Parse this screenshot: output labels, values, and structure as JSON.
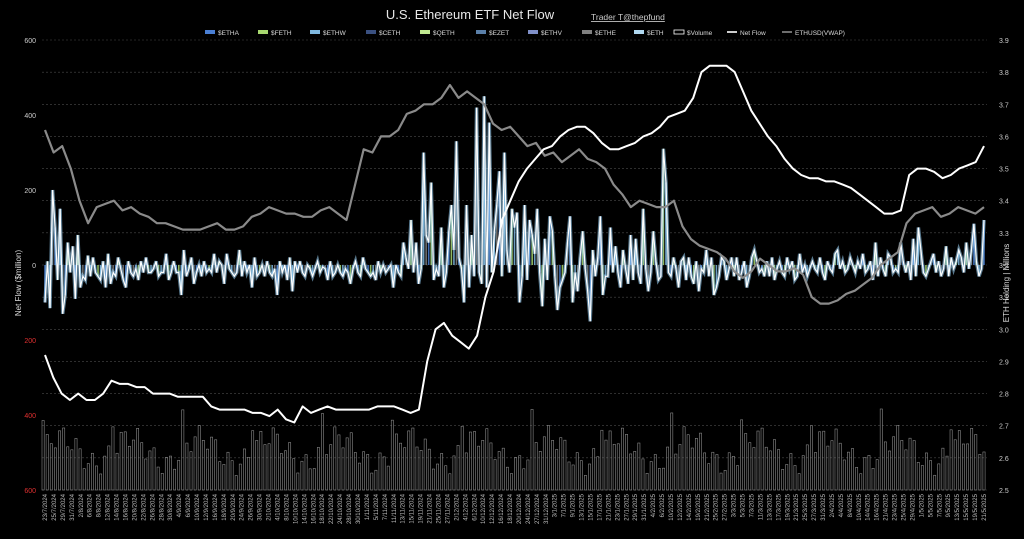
{
  "chart_data": {
    "type": "line",
    "title": "U.S. Ethereum ETF Net Flow",
    "subtitle": "Trader T@thepfund",
    "ylabel": "Net Flow ($million)",
    "y2label": "ETH Holding | Millions",
    "ylim": [
      -600,
      600
    ],
    "y2lim": [
      2.5,
      3.9
    ],
    "y_ticks": [
      600,
      400,
      200,
      0,
      -200,
      -400,
      -600
    ],
    "y_ticks_text": [
      "600",
      "400",
      "200",
      "0",
      "200",
      "400",
      "600"
    ],
    "y2_ticks": [
      3.9,
      3.8,
      3.7,
      3.6,
      3.5,
      3.4,
      3.3,
      3.2,
      3.1,
      3.0,
      2.9,
      2.8,
      2.7,
      2.6,
      2.5
    ],
    "legend_position": "top",
    "legend": [
      {
        "label": "$ETHA",
        "color": "#4a7fd4",
        "kind": "bar"
      },
      {
        "label": "$FETH",
        "color": "#a8d870",
        "kind": "bar"
      },
      {
        "label": "$ETHW",
        "color": "#7fb8e0",
        "kind": "bar"
      },
      {
        "label": "$CETH",
        "color": "#3a5080",
        "kind": "bar"
      },
      {
        "label": "$QETH",
        "color": "#c0e890",
        "kind": "bar"
      },
      {
        "label": "$EZET",
        "color": "#5a7fa8",
        "kind": "bar"
      },
      {
        "label": "$ETHV",
        "color": "#8090c8",
        "kind": "bar"
      },
      {
        "label": "$ETHE",
        "color": "#808080",
        "kind": "bar"
      },
      {
        "label": "$ETH",
        "color": "#b0d8f0",
        "kind": "bar"
      },
      {
        "label": "$Volume",
        "color": "#ffffff",
        "kind": "outline"
      },
      {
        "label": "Net Flow",
        "color": "#ffffff",
        "kind": "line"
      },
      {
        "label": "ETHUSD(VWAP)",
        "color": "#8a8a8a",
        "kind": "line"
      }
    ],
    "x_tick_labels": [
      "23/7/2024",
      "25/7/2024",
      "29/7/2024",
      "31/7/2024",
      "2/8/2024",
      "6/8/2024",
      "8/8/2024",
      "12/8/2024",
      "14/8/2024",
      "16/8/2024",
      "20/8/2024",
      "22/8/2024",
      "26/8/2024",
      "28/8/2024",
      "30/8/2024",
      "4/9/2024",
      "6/9/2024",
      "10/9/2024",
      "12/9/2024",
      "16/9/2024",
      "18/9/2024",
      "20/9/2024",
      "24/9/2024",
      "26/9/2024",
      "30/9/2024",
      "2/10/2024",
      "4/10/2024",
      "8/10/2024",
      "10/10/2024",
      "14/10/2024",
      "16/10/2024",
      "18/10/2024",
      "22/10/2024",
      "24/10/2024",
      "28/10/2024",
      "30/10/2024",
      "1/11/2024",
      "5/11/2024",
      "7/11/2024",
      "11/11/2024",
      "13/11/2024",
      "15/11/2024",
      "19/11/2024",
      "21/11/2024",
      "25/11/2024",
      "27/11/2024",
      "2/12/2024",
      "4/12/2024",
      "6/12/2024",
      "10/12/2024",
      "12/12/2024",
      "16/12/2024",
      "18/12/2024",
      "20/12/2024",
      "24/12/2024",
      "27/12/2024",
      "31/12/2024",
      "3/1/2025",
      "7/1/2025",
      "9/1/2025",
      "13/1/2025",
      "15/1/2025",
      "17/1/2025",
      "21/1/2025",
      "23/1/2025",
      "27/1/2025",
      "29/1/2025",
      "31/1/2025",
      "4/2/2025",
      "6/2/2025",
      "10/2/2025",
      "12/2/2025",
      "14/2/2025",
      "19/2/2025",
      "21/2/2025",
      "25/2/2025",
      "27/2/2025",
      "3/3/2025",
      "5/3/2025",
      "7/3/2025",
      "11/3/2025",
      "13/3/2025",
      "17/3/2025",
      "19/3/2025",
      "21/3/2025",
      "25/3/2025",
      "27/3/2025",
      "31/3/2025",
      "2/4/2025",
      "4/4/2025",
      "8/4/2025",
      "10/4/2025",
      "14/4/2025",
      "16/4/2025",
      "21/4/2025",
      "23/4/2025",
      "25/4/2025",
      "29/4/2025",
      "1/5/2025",
      "5/5/2025",
      "7/5/2025",
      "9/5/2025",
      "13/5/2025",
      "15/5/2025",
      "19/5/2025",
      "21/5/2025"
    ],
    "net_flow": [
      -100,
      10,
      -115,
      200,
      100,
      -40,
      150,
      -130,
      -80,
      60,
      -20,
      50,
      -90,
      80,
      -60,
      -30,
      -40,
      25,
      -30,
      20,
      -20,
      -30,
      -40,
      10,
      -60,
      30,
      -50,
      -20,
      -30,
      20,
      -10,
      -40,
      -60,
      10,
      -20,
      -30,
      -10,
      -40,
      10,
      -20,
      20,
      -20,
      -20,
      -10,
      10,
      -30,
      -20,
      -20,
      30,
      -40,
      -20,
      10,
      -20,
      -20,
      -80,
      40,
      -30,
      -10,
      20,
      -50,
      -20,
      0,
      -30,
      10,
      -20,
      -10,
      -20,
      30,
      -20,
      10,
      0,
      -50,
      30,
      -10,
      -20,
      -30,
      -20,
      40,
      -30,
      10,
      -20,
      0,
      -60,
      20,
      -30,
      -20,
      0,
      -30,
      10,
      -20,
      -30,
      -10,
      -80,
      10,
      -20,
      0,
      -40,
      20,
      -70,
      10,
      -20,
      10,
      -20,
      -30,
      0,
      -10,
      -30,
      -10,
      10,
      -20,
      -5,
      -10,
      -40,
      10,
      -30,
      -20,
      0,
      -20,
      -30,
      -10,
      -20,
      -50,
      -10,
      10,
      -20,
      -30,
      20,
      -10,
      -20,
      -30,
      -20,
      -40,
      10,
      -20,
      0,
      -20,
      -10,
      0,
      -60,
      0,
      -20,
      -30,
      60,
      20,
      -10,
      120,
      -20,
      60,
      -50,
      -10,
      300,
      80,
      60,
      220,
      -40,
      -10,
      -30,
      100,
      -60,
      -20,
      90,
      160,
      40,
      330,
      20,
      -10,
      -100,
      160,
      -60,
      80,
      -30,
      420,
      -20,
      -50,
      450,
      -60,
      380,
      -20,
      90,
      160,
      250,
      -30,
      300,
      40,
      -20,
      150,
      100,
      140,
      -100,
      -30,
      160,
      -40,
      120,
      80,
      30,
      150,
      -20,
      -110,
      70,
      -40,
      130,
      90,
      -30,
      -120,
      -60,
      -40,
      -20,
      60,
      130,
      -100,
      -20,
      -70,
      20,
      90,
      -10,
      -70,
      -150,
      40,
      -30,
      20,
      130,
      -80,
      -30,
      -30,
      100,
      -20,
      50,
      -20,
      -60,
      40,
      -10,
      -50,
      80,
      -40,
      70,
      -20,
      -50,
      150,
      -10,
      -70,
      -20,
      90,
      10,
      -40,
      -30,
      310,
      220,
      -20,
      -30,
      20,
      -10,
      -60,
      10,
      20,
      -40,
      20,
      -30,
      -50,
      10,
      -70,
      -10,
      -20,
      40,
      -30,
      20,
      -80,
      -60,
      -30,
      20,
      10,
      -40,
      -10,
      20,
      -30,
      20,
      -40,
      -20,
      10,
      -60,
      -30,
      20,
      40,
      10,
      -20,
      -10,
      -30,
      10,
      -30,
      20,
      -40,
      -10,
      10,
      -20,
      -30,
      20,
      -10,
      10,
      -40,
      -30,
      30,
      -20,
      0,
      -30,
      -10,
      10,
      -10,
      -20,
      20,
      -20,
      -40,
      10,
      -10,
      -20,
      30,
      40,
      -10,
      10,
      -20,
      -10,
      20,
      0,
      -20,
      10,
      -10,
      30,
      -20,
      -10,
      10,
      -40,
      60,
      -30,
      20,
      -10,
      -30,
      30,
      20,
      -20,
      -10,
      -20,
      60,
      10,
      -20,
      10,
      -40,
      70,
      -30,
      100,
      40,
      -20,
      -30,
      -10,
      10,
      30,
      -20,
      10,
      -30,
      -10,
      50,
      -30,
      20,
      -10,
      10,
      40,
      20,
      -20,
      60,
      -10,
      40,
      110,
      10,
      -30,
      -10,
      120
    ],
    "eth_holding": [
      2.92,
      2.85,
      2.8,
      2.78,
      2.8,
      2.78,
      2.78,
      2.8,
      2.84,
      2.83,
      2.83,
      2.82,
      2.82,
      2.8,
      2.8,
      2.8,
      2.79,
      2.79,
      2.79,
      2.79,
      2.76,
      2.75,
      2.75,
      2.75,
      2.75,
      2.74,
      2.74,
      2.73,
      2.75,
      2.72,
      2.71,
      2.76,
      2.74,
      2.75,
      2.76,
      2.75,
      2.75,
      2.75,
      2.75,
      2.75,
      2.76,
      2.76,
      2.76,
      2.75,
      2.74,
      2.75,
      2.9,
      3.0,
      3.02,
      2.98,
      2.96,
      2.94,
      2.98,
      3.1,
      3.18,
      3.34,
      3.4,
      3.46,
      3.5,
      3.53,
      3.56,
      3.57,
      3.6,
      3.62,
      3.63,
      3.63,
      3.61,
      3.58,
      3.56,
      3.56,
      3.57,
      3.58,
      3.6,
      3.61,
      3.63,
      3.66,
      3.67,
      3.68,
      3.72,
      3.8,
      3.82,
      3.82,
      3.82,
      3.8,
      3.74,
      3.68,
      3.64,
      3.6,
      3.57,
      3.53,
      3.5,
      3.48,
      3.47,
      3.47,
      3.46,
      3.46,
      3.45,
      3.44,
      3.42,
      3.4,
      3.38,
      3.36,
      3.36,
      3.37,
      3.48,
      3.5,
      3.5,
      3.49,
      3.47,
      3.48,
      3.5,
      3.51,
      3.52,
      3.57
    ],
    "ethusd_vwap": [
      3.62,
      3.55,
      3.57,
      3.5,
      3.4,
      3.33,
      3.38,
      3.39,
      3.4,
      3.37,
      3.38,
      3.36,
      3.35,
      3.33,
      3.33,
      3.32,
      3.31,
      3.31,
      3.31,
      3.32,
      3.33,
      3.31,
      3.31,
      3.32,
      3.35,
      3.36,
      3.38,
      3.37,
      3.36,
      3.36,
      3.35,
      3.35,
      3.37,
      3.38,
      3.36,
      3.34,
      3.45,
      3.56,
      3.55,
      3.6,
      3.6,
      3.62,
      3.67,
      3.68,
      3.7,
      3.7,
      3.72,
      3.76,
      3.72,
      3.74,
      3.72,
      3.7,
      3.64,
      3.62,
      3.63,
      3.6,
      3.57,
      3.58,
      3.54,
      3.55,
      3.52,
      3.54,
      3.56,
      3.53,
      3.52,
      3.5,
      3.45,
      3.42,
      3.38,
      3.4,
      3.39,
      3.38,
      3.38,
      3.4,
      3.32,
      3.28,
      3.26,
      3.25,
      3.24,
      3.22,
      3.18,
      3.16,
      3.18,
      3.22,
      3.2,
      3.18,
      3.18,
      3.19,
      3.17,
      3.1,
      3.08,
      3.08,
      3.09,
      3.11,
      3.12,
      3.14,
      3.16,
      3.2,
      3.22,
      3.24,
      3.33,
      3.36,
      3.37,
      3.38,
      3.35,
      3.36,
      3.38,
      3.37,
      3.36,
      3.38
    ]
  }
}
